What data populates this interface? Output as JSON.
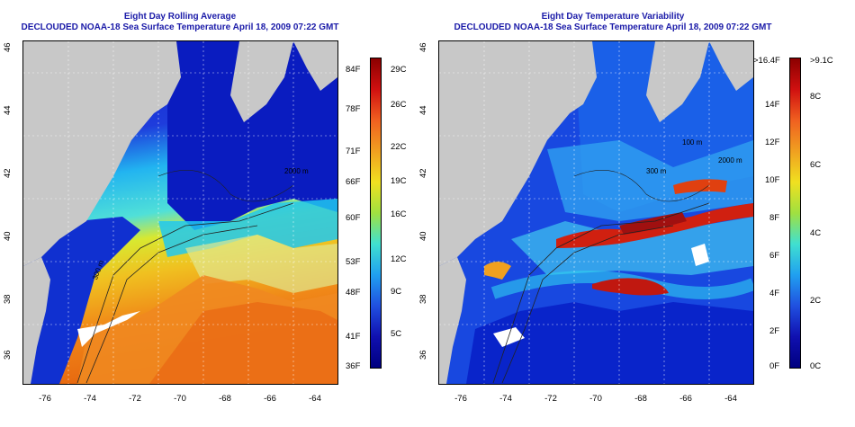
{
  "left_panel": {
    "title": "Eight Day Rolling Average",
    "subtitle": "DECLOUDED NOAA-18 Sea Surface Temperature April 18, 2009 07:22 GMT",
    "colorbar_left_labels": [
      "84F",
      "78F",
      "71F",
      "66F",
      "60F",
      "53F",
      "48F",
      "41F",
      "36F"
    ],
    "colorbar_right_labels": [
      "29C",
      "26C",
      "22C",
      "19C",
      "16C",
      "12C",
      "9C",
      "5C"
    ],
    "contour_labels": [
      "300 m",
      "300 m",
      "2000 m",
      "2000 m",
      "300 m"
    ]
  },
  "right_panel": {
    "title": "Eight Day Temperature Variability",
    "subtitle": "DECLOUDED NOAA-18 Sea Surface Temperature April 18, 2009 07:22 GMT",
    "colorbar_left_labels": [
      ">16.4F",
      "14F",
      "12F",
      "10F",
      "8F",
      "6F",
      "4F",
      "2F",
      "0F"
    ],
    "colorbar_right_labels": [
      ">9.1C",
      "8C",
      "6C",
      "4C",
      "2C",
      "0C"
    ],
    "contour_labels": [
      "100 m",
      "300 m",
      "2000 m",
      "300 m",
      "300 m"
    ]
  },
  "axes": {
    "x_ticks": [
      "-76",
      "-74",
      "-72",
      "-70",
      "-68",
      "-66",
      "-64"
    ],
    "y_ticks": [
      "46",
      "44",
      "42",
      "40",
      "38",
      "36"
    ]
  },
  "colors": {
    "title": "#1a1aa8",
    "land": "#c8c8c8"
  }
}
